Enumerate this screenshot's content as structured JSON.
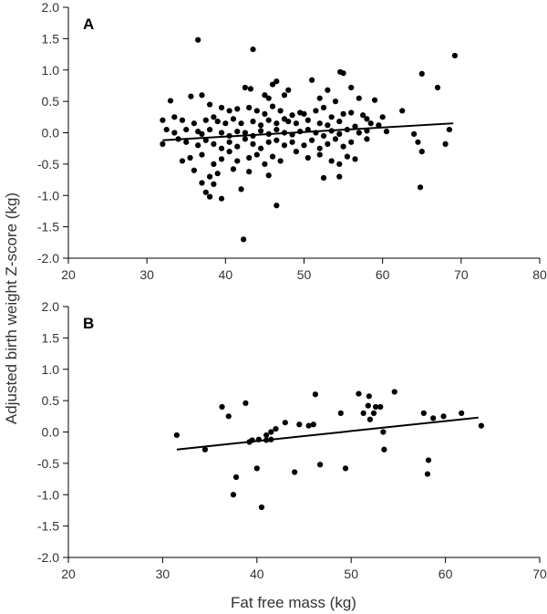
{
  "figure": {
    "ylabel": "Adjusted birth weight Z-score (kg)",
    "xlabel": "Fat free mass (kg)"
  },
  "chart_data": [
    {
      "type": "scatter",
      "panel_label": "A",
      "xlim": [
        20,
        80
      ],
      "ylim": [
        -2.0,
        2.0
      ],
      "x_ticks": [
        "20",
        "30",
        "40",
        "50",
        "60",
        "70",
        "80"
      ],
      "y_ticks": [
        "2.0",
        "1.5",
        "1.0",
        "0.5",
        "0.0",
        "-0.5",
        "-1.0",
        "-1.5",
        "-2.0"
      ],
      "grid": false,
      "legend": "none",
      "trend_line": {
        "x": [
          32,
          69
        ],
        "y": [
          -0.12,
          0.15
        ]
      },
      "points": [
        [
          36.5,
          1.48
        ],
        [
          43.5,
          1.33
        ],
        [
          54.6,
          0.97
        ],
        [
          55.0,
          0.95
        ],
        [
          51.0,
          0.84
        ],
        [
          69.2,
          1.23
        ],
        [
          65.0,
          0.94
        ],
        [
          46.5,
          0.82
        ],
        [
          46.0,
          0.77
        ],
        [
          48.0,
          0.68
        ],
        [
          42.5,
          0.72
        ],
        [
          43.2,
          0.7
        ],
        [
          67.0,
          0.72
        ],
        [
          56.0,
          0.72
        ],
        [
          53.0,
          0.68
        ],
        [
          37.0,
          0.6
        ],
        [
          35.6,
          0.58
        ],
        [
          45.0,
          0.6
        ],
        [
          45.5,
          0.55
        ],
        [
          47.5,
          0.6
        ],
        [
          52.0,
          0.55
        ],
        [
          54.0,
          0.5
        ],
        [
          57.0,
          0.55
        ],
        [
          59.0,
          0.52
        ],
        [
          33.0,
          0.51
        ],
        [
          38.0,
          0.45
        ],
        [
          39.5,
          0.4
        ],
        [
          40.5,
          0.35
        ],
        [
          41.5,
          0.38
        ],
        [
          43.0,
          0.4
        ],
        [
          44.0,
          0.35
        ],
        [
          45.0,
          0.3
        ],
        [
          46.0,
          0.42
        ],
        [
          47.0,
          0.35
        ],
        [
          48.5,
          0.28
        ],
        [
          49.5,
          0.32
        ],
        [
          50.0,
          0.3
        ],
        [
          51.5,
          0.35
        ],
        [
          52.5,
          0.4
        ],
        [
          53.5,
          0.25
        ],
        [
          55.0,
          0.3
        ],
        [
          56.0,
          0.32
        ],
        [
          57.5,
          0.28
        ],
        [
          58.0,
          0.22
        ],
        [
          60.0,
          0.25
        ],
        [
          62.5,
          0.35
        ],
        [
          33.5,
          0.25
        ],
        [
          34.5,
          0.2
        ],
        [
          36.0,
          0.15
        ],
        [
          37.5,
          0.2
        ],
        [
          38.5,
          0.25
        ],
        [
          39.0,
          0.18
        ],
        [
          40.0,
          0.15
        ],
        [
          41.0,
          0.22
        ],
        [
          42.0,
          0.15
        ],
        [
          43.5,
          0.18
        ],
        [
          44.5,
          0.12
        ],
        [
          45.5,
          0.2
        ],
        [
          46.5,
          0.15
        ],
        [
          47.5,
          0.22
        ],
        [
          48.0,
          0.18
        ],
        [
          49.0,
          0.15
        ],
        [
          50.5,
          0.2
        ],
        [
          52.0,
          0.15
        ],
        [
          53.0,
          0.12
        ],
        [
          54.5,
          0.18
        ],
        [
          56.5,
          0.1
        ],
        [
          58.5,
          0.15
        ],
        [
          59.5,
          0.12
        ],
        [
          32.0,
          0.2
        ],
        [
          32.5,
          0.05
        ],
        [
          33.5,
          0.0
        ],
        [
          35.0,
          0.05
        ],
        [
          36.5,
          0.02
        ],
        [
          37.0,
          -0.02
        ],
        [
          38.0,
          0.05
        ],
        [
          39.5,
          0.0
        ],
        [
          40.5,
          -0.05
        ],
        [
          41.5,
          0.02
        ],
        [
          42.5,
          0.0
        ],
        [
          43.5,
          -0.05
        ],
        [
          44.5,
          0.03
        ],
        [
          45.5,
          -0.02
        ],
        [
          46.5,
          0.05
        ],
        [
          47.5,
          0.0
        ],
        [
          48.5,
          -0.03
        ],
        [
          49.5,
          0.02
        ],
        [
          50.5,
          0.05
        ],
        [
          51.5,
          0.0
        ],
        [
          52.5,
          -0.05
        ],
        [
          53.5,
          0.03
        ],
        [
          54.5,
          -0.02
        ],
        [
          55.5,
          0.05
        ],
        [
          57.0,
          0.0
        ],
        [
          58.0,
          0.03
        ],
        [
          60.5,
          0.02
        ],
        [
          64.0,
          -0.02
        ],
        [
          68.5,
          0.05
        ],
        [
          32.0,
          -0.18
        ],
        [
          34.0,
          -0.1
        ],
        [
          35.0,
          -0.15
        ],
        [
          36.5,
          -0.2
        ],
        [
          37.5,
          -0.12
        ],
        [
          38.5,
          -0.18
        ],
        [
          39.5,
          -0.25
        ],
        [
          40.5,
          -0.15
        ],
        [
          41.5,
          -0.22
        ],
        [
          42.5,
          -0.1
        ],
        [
          43.5,
          -0.18
        ],
        [
          44.5,
          -0.25
        ],
        [
          45.5,
          -0.15
        ],
        [
          46.5,
          -0.12
        ],
        [
          47.5,
          -0.2
        ],
        [
          48.5,
          -0.15
        ],
        [
          50.0,
          -0.2
        ],
        [
          51.0,
          -0.12
        ],
        [
          52.0,
          -0.25
        ],
        [
          53.0,
          -0.18
        ],
        [
          54.0,
          -0.1
        ],
        [
          55.0,
          -0.22
        ],
        [
          56.0,
          -0.15
        ],
        [
          58.0,
          -0.1
        ],
        [
          64.5,
          -0.15
        ],
        [
          68.0,
          -0.18
        ],
        [
          34.5,
          -0.45
        ],
        [
          35.5,
          -0.4
        ],
        [
          37.0,
          -0.35
        ],
        [
          38.5,
          -0.5
        ],
        [
          39.5,
          -0.42
        ],
        [
          40.5,
          -0.3
        ],
        [
          41.5,
          -0.45
        ],
        [
          43.0,
          -0.4
        ],
        [
          44.0,
          -0.35
        ],
        [
          45.0,
          -0.5
        ],
        [
          46.0,
          -0.38
        ],
        [
          47.0,
          -0.45
        ],
        [
          49.0,
          -0.3
        ],
        [
          50.5,
          -0.4
        ],
        [
          52.0,
          -0.35
        ],
        [
          53.5,
          -0.45
        ],
        [
          54.5,
          -0.5
        ],
        [
          55.5,
          -0.38
        ],
        [
          56.5,
          -0.42
        ],
        [
          65.0,
          -0.3
        ],
        [
          36.0,
          -0.6
        ],
        [
          38.0,
          -0.7
        ],
        [
          39.0,
          -0.65
        ],
        [
          41.0,
          -0.58
        ],
        [
          43.0,
          -0.62
        ],
        [
          45.5,
          -0.68
        ],
        [
          52.5,
          -0.72
        ],
        [
          54.5,
          -0.7
        ],
        [
          37.0,
          -0.8
        ],
        [
          38.5,
          -0.82
        ],
        [
          37.5,
          -0.95
        ],
        [
          38.0,
          -1.02
        ],
        [
          39.5,
          -1.05
        ],
        [
          42.0,
          -0.9
        ],
        [
          64.8,
          -0.87
        ],
        [
          46.5,
          -1.16
        ],
        [
          42.3,
          -1.7
        ]
      ]
    },
    {
      "type": "scatter",
      "panel_label": "B",
      "xlim": [
        20,
        70
      ],
      "ylim": [
        -2.0,
        2.0
      ],
      "x_ticks": [
        "20",
        "30",
        "40",
        "50",
        "60",
        "70"
      ],
      "y_ticks": [
        "2.0",
        "1.5",
        "1.0",
        "0.5",
        "0.0",
        "-0.5",
        "-1.0",
        "-1.5",
        "-2.0"
      ],
      "grid": false,
      "legend": "none",
      "trend_line": {
        "x": [
          31.5,
          63.5
        ],
        "y": [
          -0.28,
          0.23
        ]
      },
      "points": [
        [
          31.5,
          -0.05
        ],
        [
          34.5,
          -0.28
        ],
        [
          36.3,
          0.4
        ],
        [
          37.0,
          0.25
        ],
        [
          37.5,
          -1.0
        ],
        [
          37.8,
          -0.72
        ],
        [
          38.8,
          0.46
        ],
        [
          39.2,
          -0.16
        ],
        [
          39.5,
          -0.13
        ],
        [
          40.0,
          -0.58
        ],
        [
          40.2,
          -0.12
        ],
        [
          40.5,
          -1.2
        ],
        [
          41.0,
          -0.13
        ],
        [
          41.0,
          -0.05
        ],
        [
          41.5,
          -0.12
        ],
        [
          41.5,
          0.0
        ],
        [
          42.0,
          0.05
        ],
        [
          43.0,
          0.15
        ],
        [
          44.0,
          -0.64
        ],
        [
          44.5,
          0.12
        ],
        [
          45.5,
          0.1
        ],
        [
          46.0,
          0.12
        ],
        [
          46.2,
          0.6
        ],
        [
          46.7,
          -0.52
        ],
        [
          48.9,
          0.3
        ],
        [
          49.4,
          -0.58
        ],
        [
          50.8,
          0.61
        ],
        [
          51.3,
          0.3
        ],
        [
          51.8,
          0.42
        ],
        [
          51.9,
          0.57
        ],
        [
          52.0,
          0.2
        ],
        [
          52.4,
          0.3
        ],
        [
          52.6,
          0.4
        ],
        [
          53.1,
          0.4
        ],
        [
          53.4,
          0.0
        ],
        [
          53.5,
          -0.28
        ],
        [
          54.6,
          0.64
        ],
        [
          57.7,
          0.3
        ],
        [
          58.2,
          -0.45
        ],
        [
          58.1,
          -0.67
        ],
        [
          58.7,
          0.22
        ],
        [
          59.8,
          0.25
        ],
        [
          61.7,
          0.3
        ],
        [
          63.8,
          0.1
        ]
      ]
    }
  ]
}
